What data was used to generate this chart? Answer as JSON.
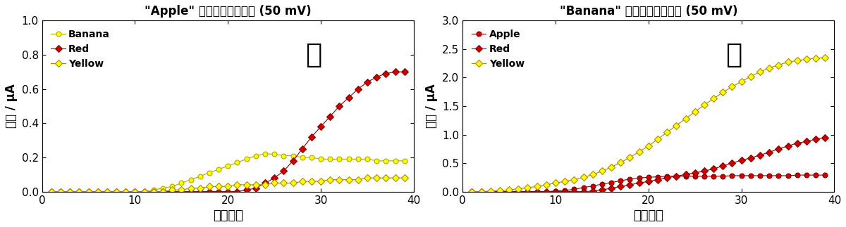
{
  "title_left": "\"Apple\" ニューロンを刺激 (50 mV)",
  "title_right": "\"Banana\" ニューロンを刺激 (50 mV)",
  "xlabel": "学習回数",
  "ylabel": "電流 / μA",
  "xlim_left": [
    0,
    40
  ],
  "ylim_left": [
    0,
    1.0
  ],
  "xlim_right": [
    0,
    40
  ],
  "ylim_right": [
    0,
    3.0
  ],
  "left_banana_x": [
    1,
    2,
    3,
    4,
    5,
    6,
    7,
    8,
    9,
    10,
    11,
    12,
    13,
    14,
    15,
    16,
    17,
    18,
    19,
    20,
    21,
    22,
    23,
    24,
    25,
    26,
    27,
    28,
    29,
    30,
    31,
    32,
    33,
    34,
    35,
    36,
    37,
    38,
    39
  ],
  "left_banana_y": [
    0,
    0,
    0,
    0,
    0,
    0,
    0,
    0,
    0,
    0,
    0,
    0.01,
    0.02,
    0.03,
    0.05,
    0.07,
    0.09,
    0.11,
    0.13,
    0.15,
    0.17,
    0.19,
    0.21,
    0.22,
    0.22,
    0.21,
    0.21,
    0.2,
    0.2,
    0.19,
    0.19,
    0.19,
    0.19,
    0.19,
    0.19,
    0.18,
    0.18,
    0.18,
    0.18
  ],
  "left_red_x": [
    1,
    2,
    3,
    4,
    5,
    6,
    7,
    8,
    9,
    10,
    11,
    12,
    13,
    14,
    15,
    16,
    17,
    18,
    19,
    20,
    21,
    22,
    23,
    24,
    25,
    26,
    27,
    28,
    29,
    30,
    31,
    32,
    33,
    34,
    35,
    36,
    37,
    38,
    39
  ],
  "left_red_y": [
    0,
    0,
    0,
    0,
    0,
    0,
    0,
    0,
    0,
    0,
    0,
    0,
    0,
    0,
    0,
    0,
    0,
    0,
    0,
    0,
    0,
    0.01,
    0.02,
    0.05,
    0.08,
    0.12,
    0.18,
    0.25,
    0.32,
    0.38,
    0.44,
    0.5,
    0.55,
    0.6,
    0.64,
    0.67,
    0.69,
    0.7,
    0.7
  ],
  "left_yellow_x": [
    1,
    2,
    3,
    4,
    5,
    6,
    7,
    8,
    9,
    10,
    11,
    12,
    13,
    14,
    15,
    16,
    17,
    18,
    19,
    20,
    21,
    22,
    23,
    24,
    25,
    26,
    27,
    28,
    29,
    30,
    31,
    32,
    33,
    34,
    35,
    36,
    37,
    38,
    39
  ],
  "left_yellow_y": [
    0,
    0,
    0,
    0,
    0,
    0,
    0,
    0,
    0,
    0,
    0,
    0,
    0,
    0.01,
    0.01,
    0.02,
    0.02,
    0.03,
    0.03,
    0.03,
    0.04,
    0.04,
    0.04,
    0.04,
    0.05,
    0.05,
    0.05,
    0.06,
    0.06,
    0.06,
    0.07,
    0.07,
    0.07,
    0.07,
    0.08,
    0.08,
    0.08,
    0.08,
    0.08
  ],
  "right_apple_x": [
    1,
    2,
    3,
    4,
    5,
    6,
    7,
    8,
    9,
    10,
    11,
    12,
    13,
    14,
    15,
    16,
    17,
    18,
    19,
    20,
    21,
    22,
    23,
    24,
    25,
    26,
    27,
    28,
    29,
    30,
    31,
    32,
    33,
    34,
    35,
    36,
    37,
    38,
    39
  ],
  "right_apple_y": [
    0,
    0,
    0,
    0,
    0,
    0,
    0,
    0,
    0,
    0.01,
    0.02,
    0.04,
    0.07,
    0.1,
    0.13,
    0.16,
    0.19,
    0.22,
    0.24,
    0.25,
    0.26,
    0.27,
    0.27,
    0.27,
    0.27,
    0.27,
    0.27,
    0.27,
    0.28,
    0.28,
    0.28,
    0.28,
    0.28,
    0.28,
    0.28,
    0.29,
    0.29,
    0.29,
    0.29
  ],
  "right_red_x": [
    1,
    2,
    3,
    4,
    5,
    6,
    7,
    8,
    9,
    10,
    11,
    12,
    13,
    14,
    15,
    16,
    17,
    18,
    19,
    20,
    21,
    22,
    23,
    24,
    25,
    26,
    27,
    28,
    29,
    30,
    31,
    32,
    33,
    34,
    35,
    36,
    37,
    38,
    39
  ],
  "right_red_y": [
    0,
    0,
    0,
    0,
    0,
    0,
    0,
    0,
    0,
    0,
    0,
    0,
    0,
    0.01,
    0.03,
    0.06,
    0.09,
    0.12,
    0.15,
    0.18,
    0.21,
    0.24,
    0.27,
    0.3,
    0.33,
    0.36,
    0.4,
    0.45,
    0.5,
    0.55,
    0.59,
    0.64,
    0.69,
    0.75,
    0.8,
    0.85,
    0.88,
    0.92,
    0.95
  ],
  "right_yellow_x": [
    1,
    2,
    3,
    4,
    5,
    6,
    7,
    8,
    9,
    10,
    11,
    12,
    13,
    14,
    15,
    16,
    17,
    18,
    19,
    20,
    21,
    22,
    23,
    24,
    25,
    26,
    27,
    28,
    29,
    30,
    31,
    32,
    33,
    34,
    35,
    36,
    37,
    38,
    39
  ],
  "right_yellow_y": [
    0,
    0,
    0.01,
    0.02,
    0.03,
    0.05,
    0.07,
    0.09,
    0.12,
    0.15,
    0.18,
    0.21,
    0.25,
    0.3,
    0.36,
    0.43,
    0.51,
    0.6,
    0.7,
    0.8,
    0.92,
    1.04,
    1.16,
    1.28,
    1.4,
    1.52,
    1.63,
    1.74,
    1.84,
    1.93,
    2.02,
    2.1,
    2.17,
    2.22,
    2.27,
    2.3,
    2.32,
    2.34,
    2.35
  ],
  "background_color": "#ffffff"
}
